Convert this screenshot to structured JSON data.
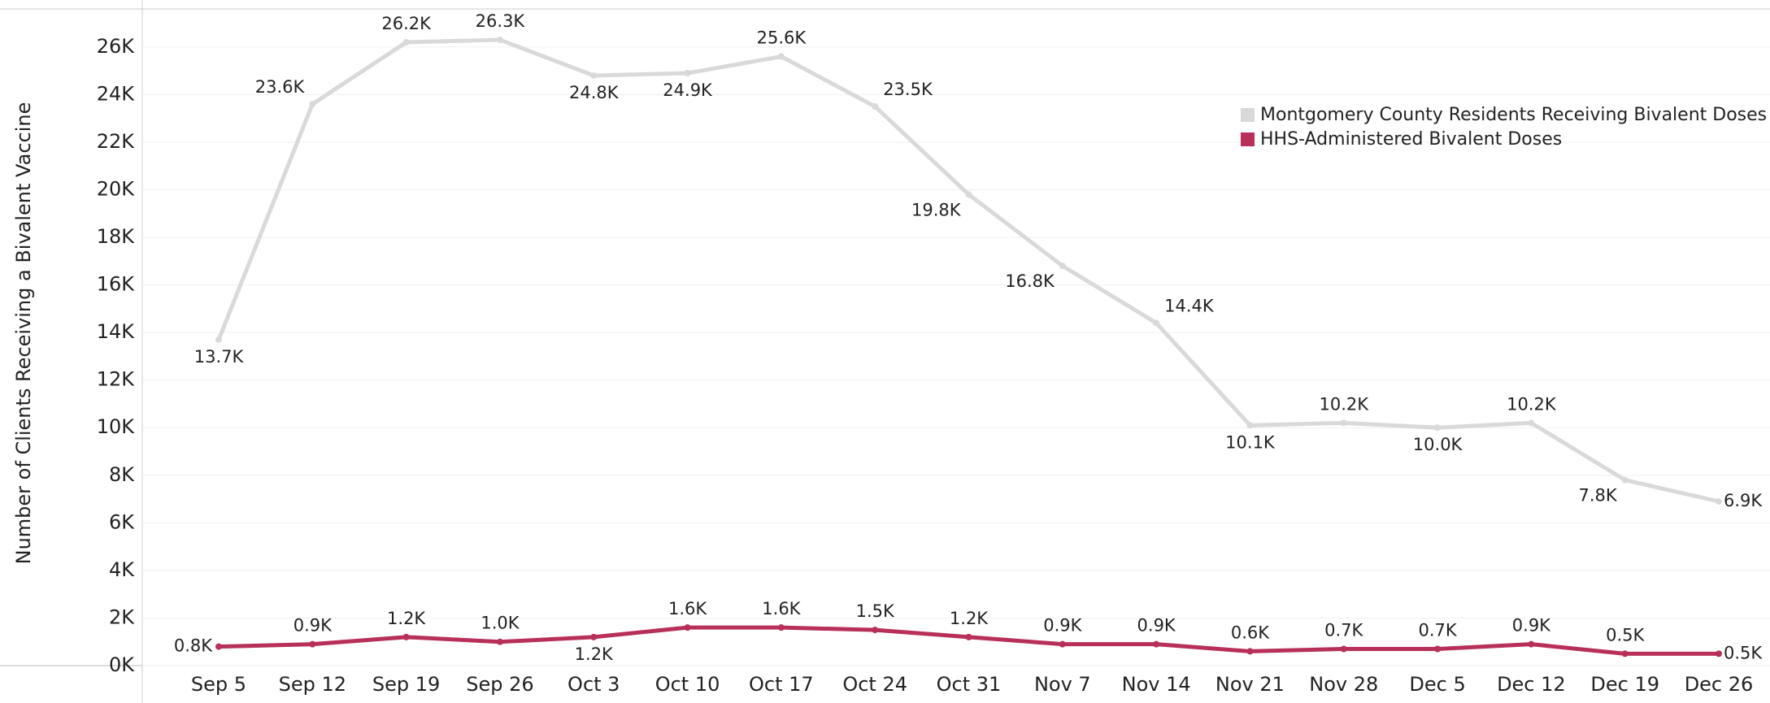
{
  "chart_data": {
    "type": "line",
    "y_label": "Number of Clients Receiving a Bivalent Vaccine",
    "categories": [
      "Sep 5",
      "Sep 12",
      "Sep 19",
      "Sep 26",
      "Oct 3",
      "Oct 10",
      "Oct 17",
      "Oct 24",
      "Oct 31",
      "Nov 7",
      "Nov 14",
      "Nov 21",
      "Nov 28",
      "Dec 5",
      "Dec 12",
      "Dec 19",
      "Dec 26"
    ],
    "series": [
      {
        "name": "Montgomery County Residents Receiving Bivalent Doses",
        "color": "#d9d9d9",
        "values": [
          13700,
          23600,
          26200,
          26300,
          24800,
          24900,
          25600,
          23500,
          19800,
          16800,
          14400,
          10100,
          10200,
          10000,
          10200,
          7800,
          6900
        ],
        "value_labels": [
          "13.7K",
          "23.6K",
          "26.2K",
          "26.3K",
          "24.8K",
          "24.9K",
          "25.6K",
          "23.5K",
          "19.8K",
          "16.8K",
          "14.4K",
          "10.1K",
          "10.2K",
          "10.0K",
          "10.2K",
          "7.8K",
          "6.9K"
        ]
      },
      {
        "name": "HHS-Administered Bivalent Doses",
        "color": "#b8305a",
        "values": [
          800,
          900,
          1200,
          1000,
          1200,
          1600,
          1600,
          1500,
          1200,
          900,
          900,
          600,
          700,
          700,
          900,
          500,
          500
        ],
        "value_labels": [
          "0.8K",
          "0.9K",
          "1.2K",
          "1.0K",
          "1.2K",
          "1.6K",
          "1.6K",
          "1.5K",
          "1.2K",
          "0.9K",
          "0.9K",
          "0.6K",
          "0.7K",
          "0.7K",
          "0.9K",
          "0.5K",
          "0.5K"
        ]
      }
    ],
    "ylim": [
      0,
      27600
    ],
    "yticks": [
      {
        "value": 0,
        "label": "0K"
      },
      {
        "value": 2000,
        "label": "2K"
      },
      {
        "value": 4000,
        "label": "4K"
      },
      {
        "value": 6000,
        "label": "6K"
      },
      {
        "value": 8000,
        "label": "8K"
      },
      {
        "value": 10000,
        "label": "10K"
      },
      {
        "value": 12000,
        "label": "12K"
      },
      {
        "value": 14000,
        "label": "14K"
      },
      {
        "value": 16000,
        "label": "16K"
      },
      {
        "value": 18000,
        "label": "18K"
      },
      {
        "value": 20000,
        "label": "20K"
      },
      {
        "value": 22000,
        "label": "22K"
      },
      {
        "value": 24000,
        "label": "24K"
      },
      {
        "value": 26000,
        "label": "26K"
      }
    ],
    "grid": true,
    "legend": "top-right"
  }
}
